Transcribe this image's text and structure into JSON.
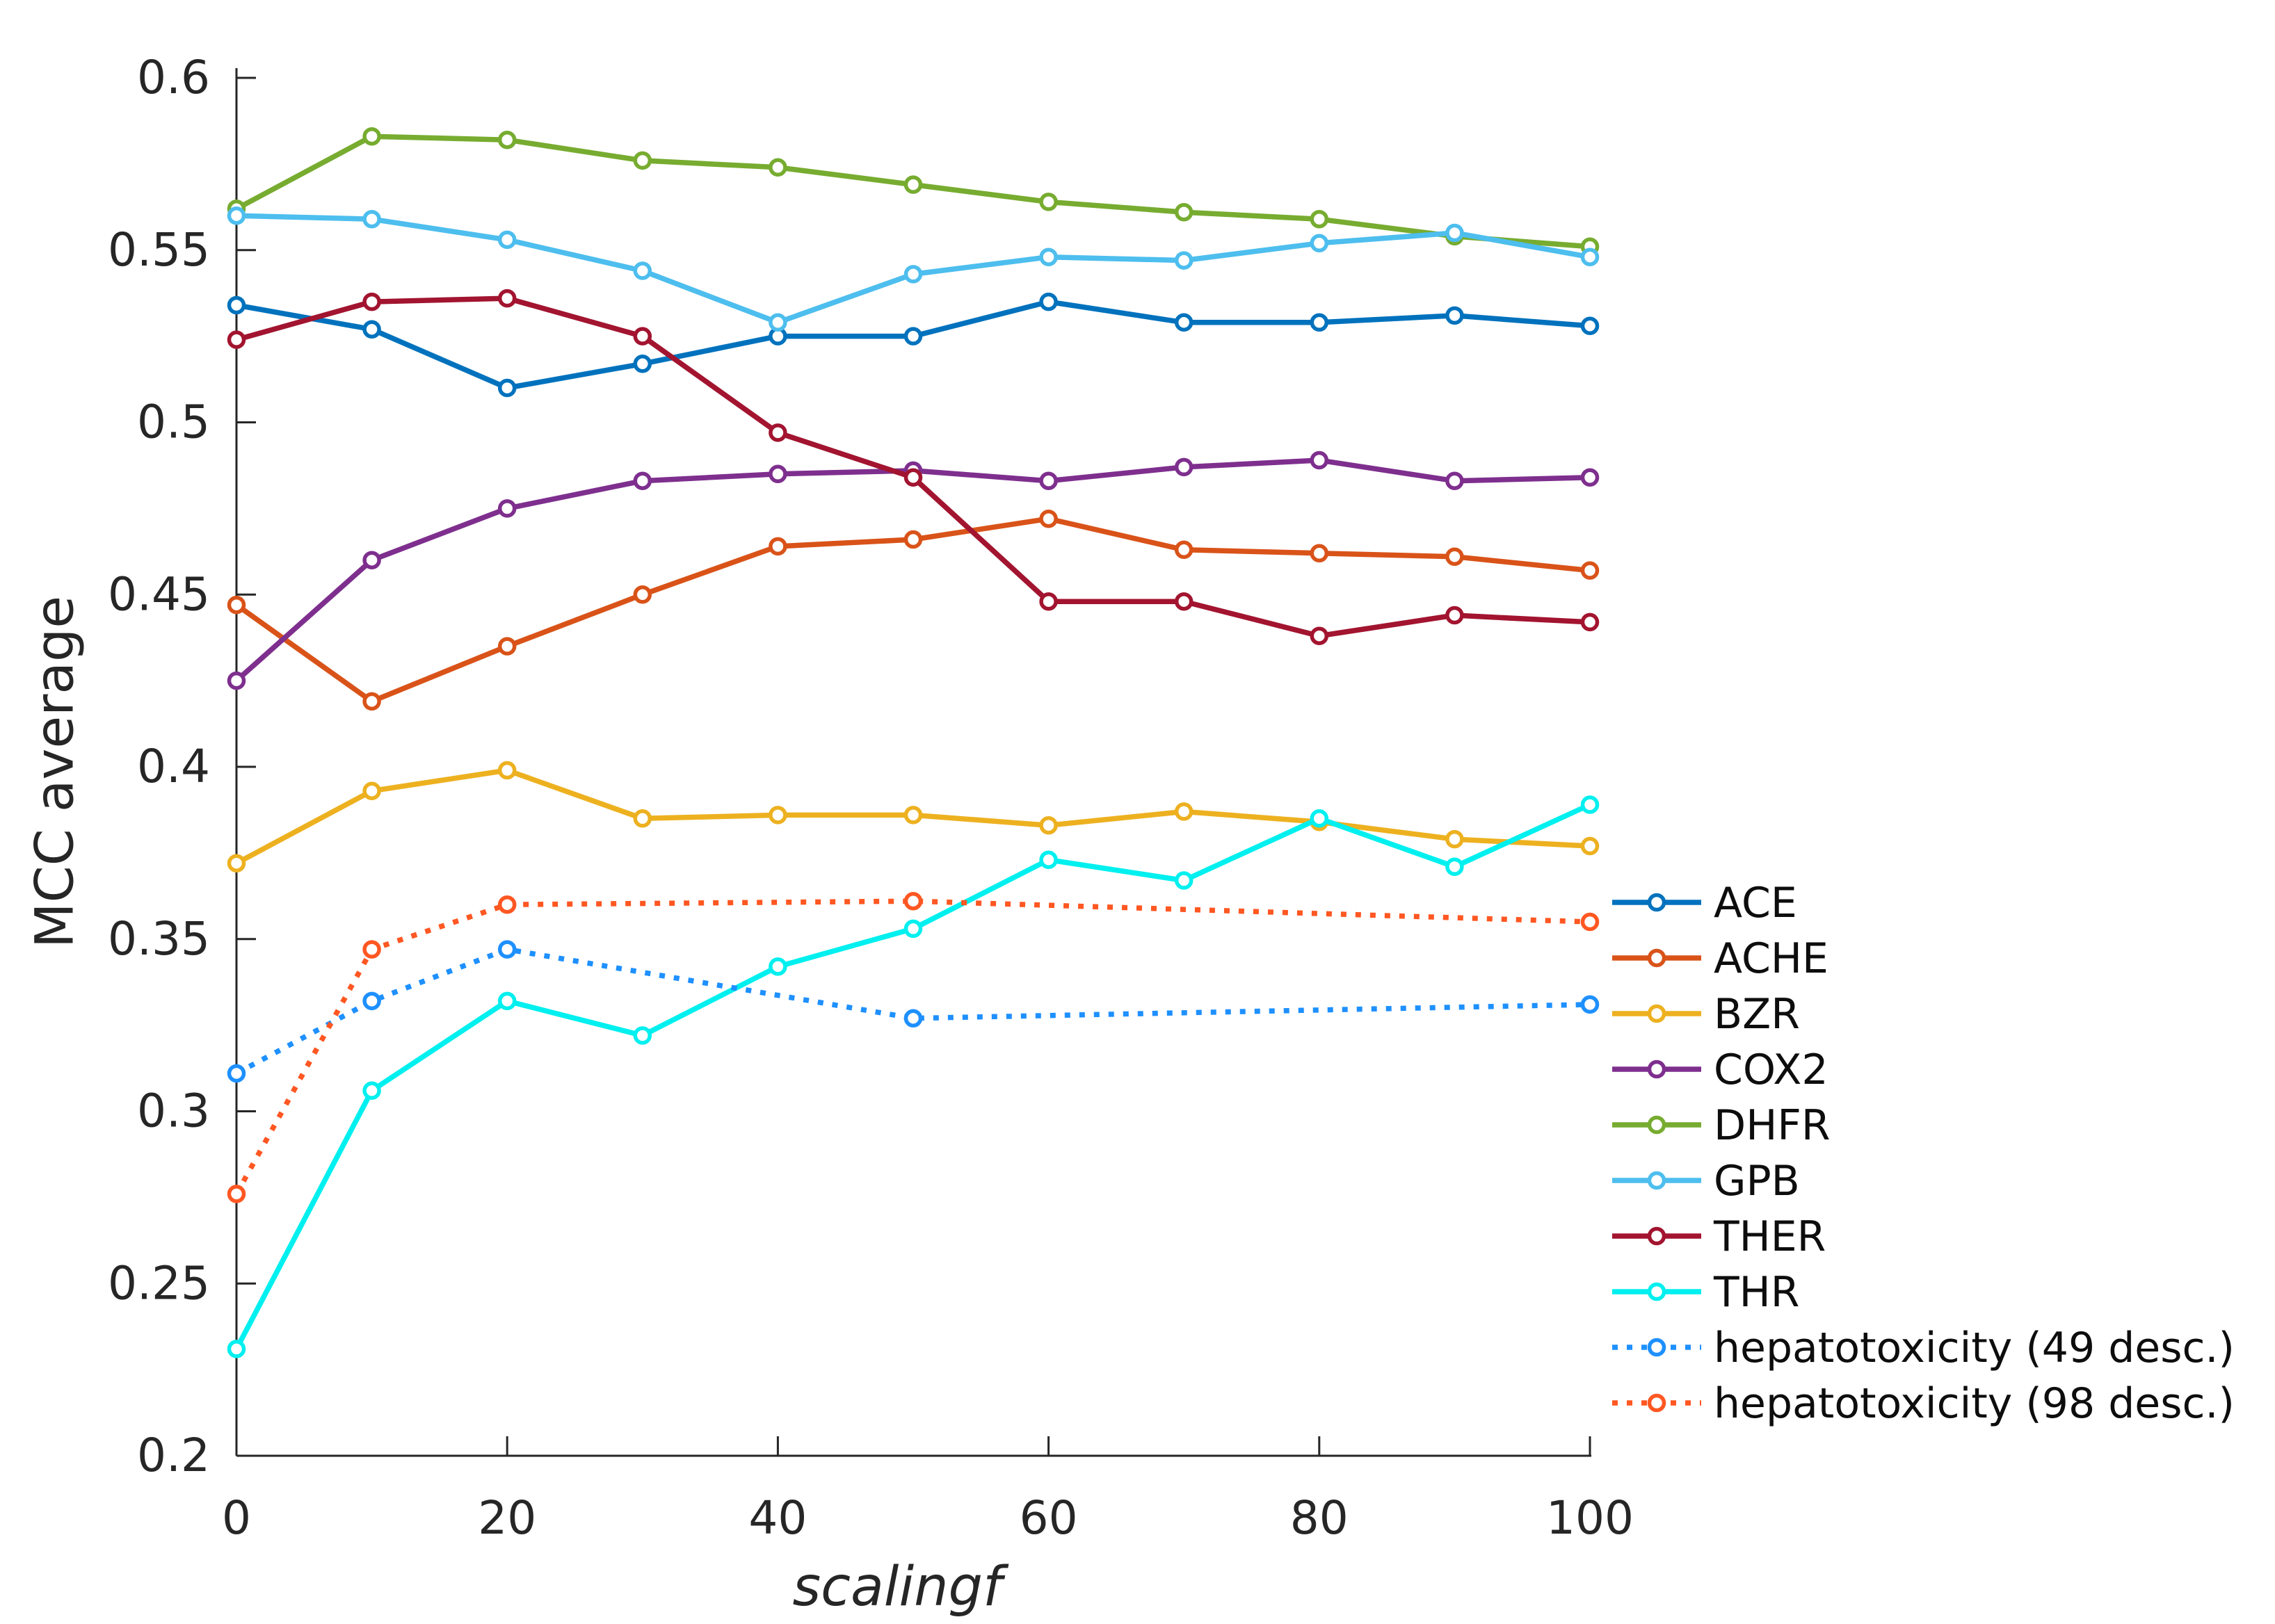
{
  "figure_title": "",
  "axis_color": "#262626",
  "chart_data": {
    "type": "line",
    "title": "",
    "xlabel": "scalingf",
    "ylabel": "MCC average",
    "xlim": [
      0,
      100
    ],
    "ylim": [
      0.2,
      0.6
    ],
    "xticks": [
      0,
      20,
      40,
      60,
      80,
      100
    ],
    "xtick_labels": [
      "0",
      "20",
      "40",
      "60",
      "80",
      "100"
    ],
    "yticks": [
      0.2,
      0.25,
      0.3,
      0.35,
      0.4,
      0.45,
      0.5,
      0.55,
      0.6
    ],
    "ytick_labels": [
      "0.2",
      "0.25",
      "0.3",
      "0.35",
      "0.4",
      "0.45",
      "0.5",
      "0.55",
      "0.6"
    ],
    "grid": false,
    "legend_position": "right-outside",
    "x": [
      0,
      10,
      20,
      30,
      40,
      50,
      60,
      70,
      80,
      90,
      100
    ],
    "series": [
      {
        "name": "ACE",
        "color": "#0072BD",
        "style": "solid",
        "values": [
          0.534,
          0.527,
          0.51,
          0.517,
          0.525,
          0.525,
          0.535,
          0.529,
          0.529,
          0.531,
          0.528
        ]
      },
      {
        "name": "ACHE",
        "color": "#D95319",
        "style": "solid",
        "values": [
          0.447,
          0.419,
          0.435,
          0.45,
          0.464,
          0.466,
          0.472,
          0.463,
          0.462,
          0.461,
          0.457
        ]
      },
      {
        "name": "BZR",
        "color": "#EDB120",
        "style": "solid",
        "values": [
          0.372,
          0.393,
          0.399,
          0.385,
          0.386,
          0.386,
          0.383,
          0.387,
          0.384,
          0.379,
          0.377
        ]
      },
      {
        "name": "COX2",
        "color": "#7E2F8E",
        "style": "solid",
        "values": [
          0.425,
          0.46,
          0.475,
          0.483,
          0.485,
          0.486,
          0.483,
          0.487,
          0.489,
          0.483,
          0.484
        ]
      },
      {
        "name": "DHFR",
        "color": "#77AC30",
        "style": "solid",
        "values": [
          0.562,
          0.583,
          0.582,
          0.576,
          0.574,
          0.569,
          0.564,
          0.561,
          0.559,
          0.554,
          0.551
        ]
      },
      {
        "name": "GPB",
        "color": "#4DBEEE",
        "style": "solid",
        "values": [
          0.56,
          0.559,
          0.553,
          0.544,
          0.529,
          0.543,
          0.548,
          0.547,
          0.552,
          0.555,
          0.548
        ]
      },
      {
        "name": "THER",
        "color": "#A2142F",
        "style": "solid",
        "values": [
          0.524,
          0.535,
          0.536,
          0.525,
          0.497,
          0.484,
          0.448,
          0.448,
          0.438,
          0.444,
          0.442
        ]
      },
      {
        "name": "THR",
        "color": "#00EFEF",
        "style": "solid",
        "values": [
          0.231,
          0.306,
          0.332,
          0.322,
          0.342,
          0.353,
          0.373,
          0.367,
          0.385,
          0.371,
          0.389
        ]
      },
      {
        "name": "hepatotoxicity (49 desc.)",
        "color": "#1E90FF",
        "style": "dotted",
        "x": [
          0,
          10,
          20,
          50,
          100
        ],
        "values": [
          0.311,
          0.332,
          0.347,
          0.327,
          0.331
        ]
      },
      {
        "name": "hepatotoxicity (98 desc.)",
        "color": "#FF5722",
        "style": "dotted",
        "x": [
          0,
          10,
          20,
          50,
          100
        ],
        "values": [
          0.276,
          0.347,
          0.36,
          0.361,
          0.355
        ]
      }
    ]
  }
}
